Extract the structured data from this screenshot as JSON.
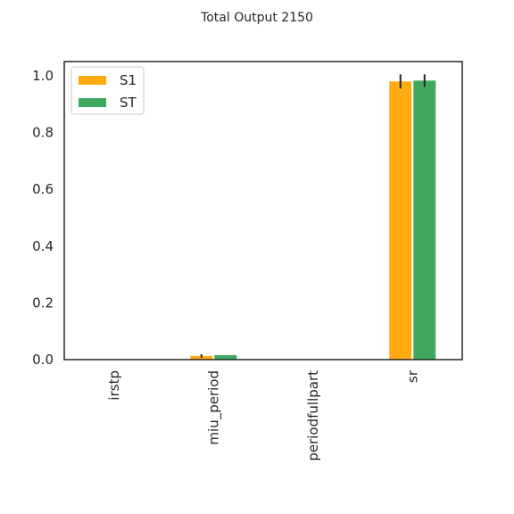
{
  "chart_data": {
    "type": "bar",
    "title": "Total Output 2150",
    "categories": [
      "irstp",
      "miu_period",
      "periodfullpart",
      "sr"
    ],
    "series": [
      {
        "name": "S1",
        "color": "#ffaa11",
        "values": [
          0.0,
          0.013,
          0.0,
          0.98
        ],
        "errors": [
          0.0,
          0.006,
          0.0,
          0.025
        ]
      },
      {
        "name": "ST",
        "color": "#41a85f",
        "values": [
          0.0,
          0.016,
          0.0,
          0.983
        ],
        "errors": [
          0.0,
          0.0,
          0.0,
          0.022
        ]
      }
    ],
    "ylim": [
      0,
      1.05
    ],
    "yticks": [
      0.0,
      0.2,
      0.4,
      0.6,
      0.8,
      1.0
    ],
    "ytick_labels": [
      "0.0",
      "0.2",
      "0.4",
      "0.6",
      "0.8",
      "1.0"
    ],
    "xlabel": "",
    "ylabel": "",
    "grid": false,
    "legend_position": "top-left"
  }
}
